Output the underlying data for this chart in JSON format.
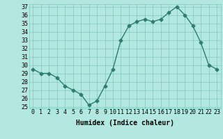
{
  "x": [
    0,
    1,
    2,
    3,
    4,
    5,
    6,
    7,
    8,
    9,
    10,
    11,
    12,
    13,
    14,
    15,
    16,
    17,
    18,
    19,
    20,
    21,
    22,
    23
  ],
  "y": [
    29.5,
    29.0,
    29.0,
    28.5,
    27.5,
    27.0,
    26.5,
    25.2,
    25.7,
    27.5,
    29.5,
    33.0,
    34.7,
    35.2,
    35.5,
    35.2,
    35.5,
    36.3,
    37.0,
    36.0,
    34.7,
    32.7,
    30.0,
    29.5
  ],
  "xlim": [
    -0.5,
    23.5
  ],
  "ylim": [
    24.8,
    37.3
  ],
  "yticks": [
    25,
    26,
    27,
    28,
    29,
    30,
    31,
    32,
    33,
    34,
    35,
    36,
    37
  ],
  "xticks": [
    0,
    1,
    2,
    3,
    4,
    5,
    6,
    7,
    8,
    9,
    10,
    11,
    12,
    13,
    14,
    15,
    16,
    17,
    18,
    19,
    20,
    21,
    22,
    23
  ],
  "xlabel": "Humidex (Indice chaleur)",
  "line_color": "#2e7d6e",
  "marker": "D",
  "marker_size": 2.5,
  "bg_color": "#b2e8e0",
  "grid_color": "#7fc8be",
  "font_color": "#000000",
  "xlabel_fontsize": 7,
  "tick_fontsize": 6,
  "line_width": 1.0
}
